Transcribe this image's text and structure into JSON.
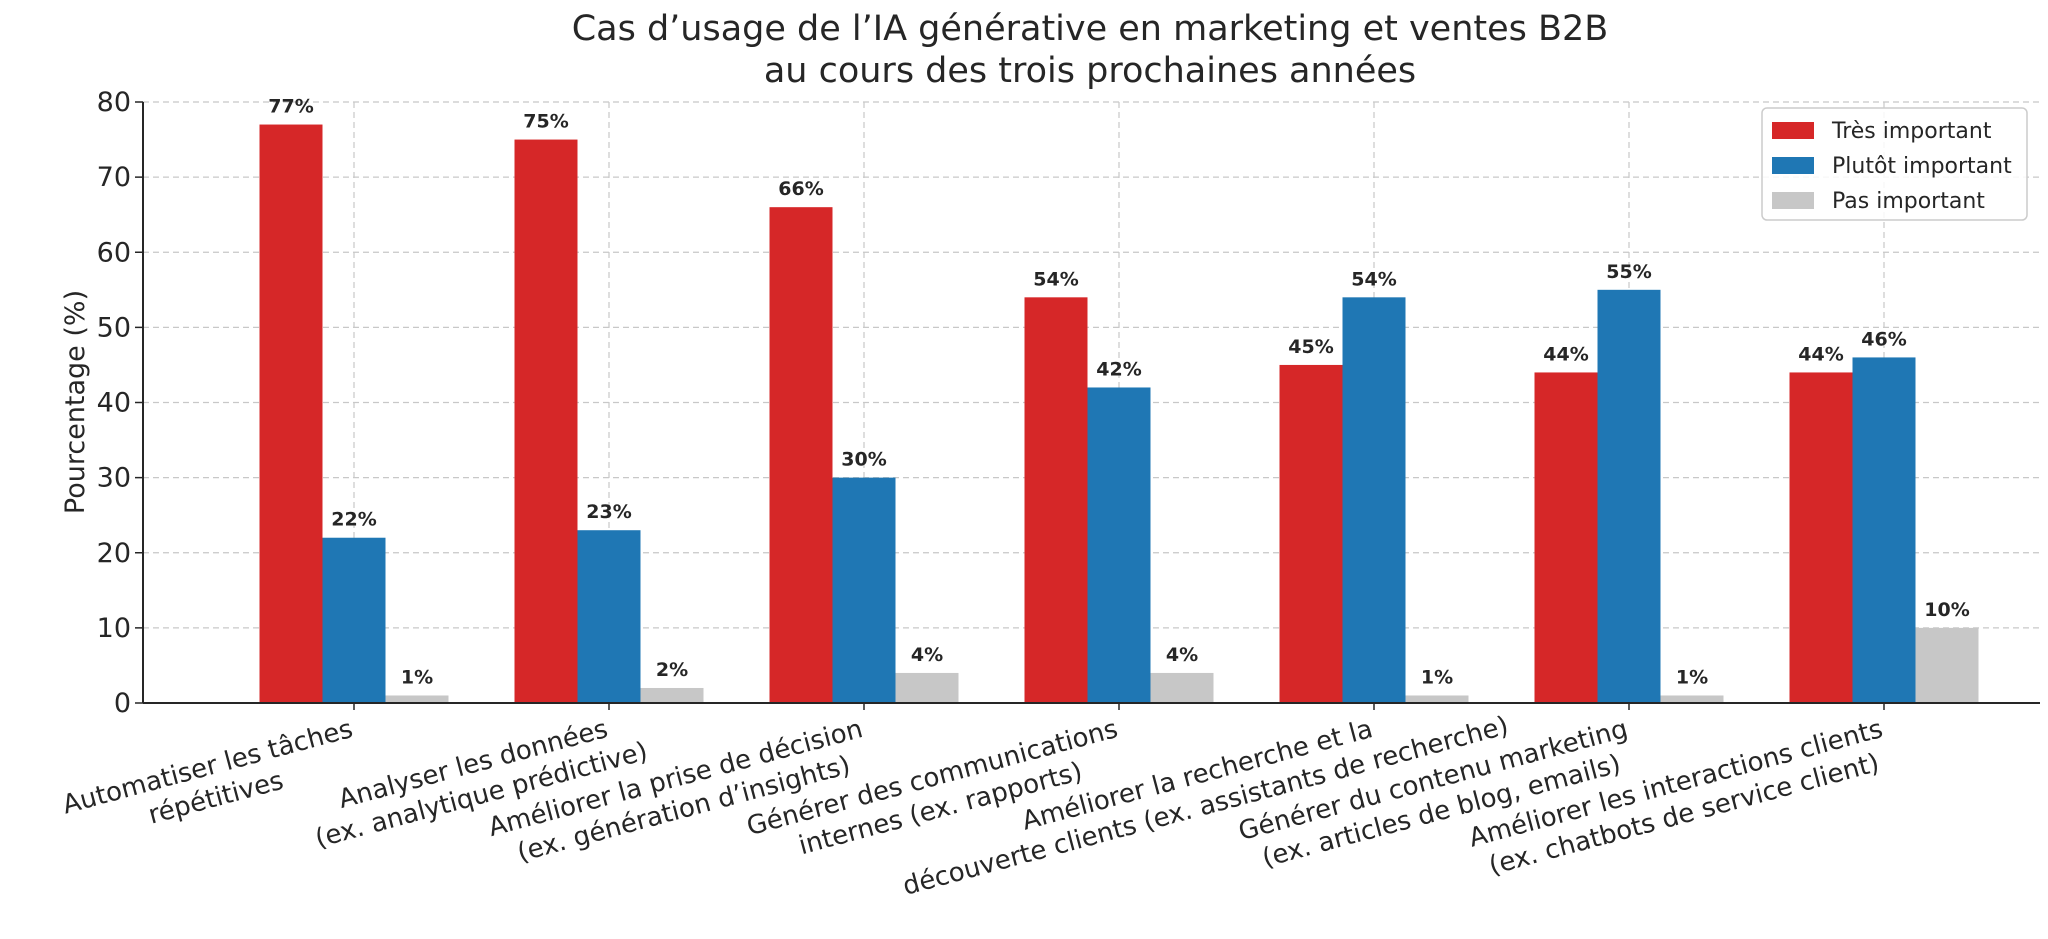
{
  "chart_data": {
    "type": "bar",
    "title": [
      "Cas d’usage de l’IA générative en marketing et ventes B2B",
      "au cours des trois prochaines années"
    ],
    "xlabel": "",
    "ylabel": "Pourcentage (%)",
    "ylim": [
      0,
      80
    ],
    "yticks": [
      0,
      10,
      20,
      30,
      40,
      50,
      60,
      70,
      80
    ],
    "grid": true,
    "legend_position": "top-right",
    "value_suffix": "%",
    "categories": [
      [
        "Automatiser les tâches",
        "répétitives"
      ],
      [
        "Analyser les données",
        "(ex. analytique prédictive)"
      ],
      [
        "Améliorer la prise de décision",
        "(ex. génération d’insights)"
      ],
      [
        "Générer des communications",
        "internes (ex. rapports)"
      ],
      [
        "Améliorer la recherche et la",
        "découverte clients (ex. assistants de recherche)"
      ],
      [
        "Générer du contenu marketing",
        "(ex. articles de blog, emails)"
      ],
      [
        "Améliorer les interactions clients",
        "(ex. chatbots de service client)"
      ]
    ],
    "series": [
      {
        "name": "Très important",
        "color": "#d62728",
        "values": [
          77,
          75,
          66,
          54,
          45,
          44,
          44
        ]
      },
      {
        "name": "Plutôt important",
        "color": "#1f77b4",
        "values": [
          22,
          23,
          30,
          42,
          54,
          55,
          46
        ]
      },
      {
        "name": "Pas important",
        "color": "#c7c7c7",
        "values": [
          1,
          2,
          4,
          4,
          1,
          1,
          10
        ]
      }
    ]
  }
}
